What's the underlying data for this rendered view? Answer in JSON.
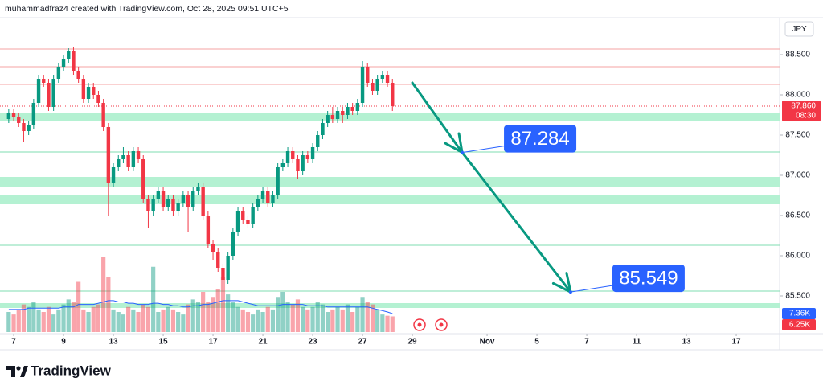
{
  "header": "muhammadfraz4 created with TradingView.com, Oct 28, 2025 09:51 UTC+5",
  "logo": "TradingView",
  "chart_data": {
    "type": "candlestick",
    "currency": "JPY",
    "x": [
      -0.2,
      0,
      0.2,
      0.4,
      0.6,
      0.8,
      1,
      1.2,
      1.4,
      1.6,
      1.8,
      2,
      2.2,
      2.4,
      2.6,
      2.8,
      3,
      3.2,
      3.4,
      3.6,
      3.8,
      4,
      4.2,
      4.4,
      4.6,
      4.8,
      5,
      5.2,
      5.4,
      5.6,
      5.8,
      6,
      6.2,
      6.4,
      6.6,
      6.8,
      7,
      7.2,
      7.4,
      7.6,
      7.8,
      8,
      8.2,
      8.4,
      8.6,
      8.8,
      9,
      9.2,
      9.4,
      9.6,
      9.8,
      10,
      10.2,
      10.4,
      10.6,
      10.8,
      11,
      11.2,
      11.4,
      11.6,
      11.8,
      12,
      12.2,
      12.4,
      12.6,
      12.8,
      13,
      13.2,
      13.4,
      13.6,
      13.8,
      14,
      14.2,
      14.4,
      14.6,
      14.8,
      15,
      15.2
    ],
    "open": [
      87.7,
      87.78,
      87.72,
      87.65,
      87.55,
      87.62,
      87.9,
      88.2,
      88.15,
      87.85,
      88.2,
      88.35,
      88.45,
      88.55,
      88.3,
      88.2,
      87.95,
      88.1,
      88.0,
      87.9,
      87.6,
      86.9,
      87.1,
      87.2,
      87.25,
      87.1,
      87.3,
      87.2,
      86.7,
      86.55,
      86.7,
      86.8,
      86.6,
      86.7,
      86.55,
      86.65,
      86.75,
      86.6,
      86.8,
      86.85,
      86.5,
      86.15,
      86.05,
      85.85,
      85.7,
      86.0,
      86.3,
      86.55,
      86.45,
      86.4,
      86.6,
      86.7,
      86.8,
      86.65,
      86.75,
      87.1,
      87.15,
      87.3,
      87.2,
      87.05,
      87.25,
      87.2,
      87.35,
      87.5,
      87.65,
      87.75,
      87.7,
      87.8,
      87.75,
      87.85,
      87.8,
      87.9,
      88.35,
      88.15,
      88.05,
      88.2,
      88.25,
      88.15
    ],
    "high": [
      87.83,
      87.83,
      87.77,
      87.7,
      87.67,
      87.95,
      88.25,
      88.25,
      88.2,
      88.25,
      88.4,
      88.5,
      88.58,
      88.6,
      88.35,
      88.25,
      88.15,
      88.15,
      88.05,
      87.95,
      87.65,
      87.15,
      87.25,
      87.35,
      87.3,
      87.35,
      87.35,
      87.25,
      86.75,
      86.75,
      86.85,
      86.85,
      86.75,
      86.75,
      86.7,
      86.8,
      86.8,
      86.85,
      86.9,
      86.9,
      86.55,
      86.2,
      86.1,
      85.9,
      86.05,
      86.35,
      86.6,
      86.6,
      86.5,
      86.65,
      86.75,
      86.85,
      86.85,
      86.8,
      87.15,
      87.2,
      87.35,
      87.35,
      87.25,
      87.3,
      87.3,
      87.4,
      87.55,
      87.7,
      87.8,
      87.85,
      87.85,
      87.85,
      87.9,
      87.9,
      87.95,
      88.42,
      88.4,
      88.2,
      88.25,
      88.3,
      88.3,
      88.2
    ],
    "low": [
      87.65,
      87.67,
      87.6,
      87.42,
      87.5,
      87.57,
      87.85,
      88.1,
      87.8,
      87.8,
      88.15,
      88.3,
      88.4,
      88.25,
      88.15,
      87.9,
      87.9,
      87.95,
      87.85,
      87.55,
      86.5,
      86.85,
      87.05,
      87.15,
      87.05,
      87.05,
      87.15,
      86.65,
      86.35,
      86.5,
      86.65,
      86.55,
      86.55,
      86.5,
      86.5,
      86.6,
      86.3,
      86.55,
      86.75,
      86.45,
      86.1,
      85.95,
      85.8,
      85.55,
      85.65,
      85.95,
      86.25,
      86.4,
      86.35,
      86.35,
      86.55,
      86.65,
      86.6,
      86.6,
      86.7,
      87.05,
      87.1,
      87.15,
      86.95,
      87.0,
      87.15,
      87.15,
      87.3,
      87.45,
      87.6,
      87.65,
      87.65,
      87.65,
      87.7,
      87.75,
      87.75,
      87.85,
      88.1,
      88.0,
      88.0,
      88.15,
      88.1,
      87.8
    ],
    "close": [
      87.78,
      87.72,
      87.65,
      87.55,
      87.62,
      87.9,
      88.2,
      88.15,
      87.85,
      88.2,
      88.35,
      88.45,
      88.55,
      88.3,
      88.2,
      87.95,
      88.1,
      88.0,
      87.9,
      87.6,
      86.9,
      87.1,
      87.2,
      87.25,
      87.1,
      87.3,
      87.2,
      86.7,
      86.55,
      86.7,
      86.8,
      86.6,
      86.7,
      86.55,
      86.65,
      86.75,
      86.6,
      86.8,
      86.85,
      86.5,
      86.15,
      86.05,
      85.85,
      85.7,
      86.0,
      86.3,
      86.55,
      86.45,
      86.4,
      86.6,
      86.7,
      86.8,
      86.65,
      86.75,
      87.1,
      87.15,
      87.3,
      87.2,
      87.05,
      87.25,
      87.2,
      87.35,
      87.5,
      87.65,
      87.75,
      87.7,
      87.8,
      87.75,
      87.85,
      87.8,
      87.9,
      88.35,
      88.15,
      88.05,
      88.2,
      88.25,
      88.15,
      87.86
    ],
    "up_color": "#089981",
    "down_color": "#f23645",
    "volume": {
      "values": [
        8,
        7,
        9,
        11,
        10,
        12,
        9,
        8,
        10,
        7,
        9,
        11,
        13,
        12,
        20,
        9,
        8,
        10,
        11,
        30,
        22,
        9,
        8,
        7,
        10,
        9,
        8,
        11,
        10,
        26,
        8,
        9,
        10,
        9,
        8,
        7,
        11,
        13,
        12,
        16,
        12,
        14,
        17,
        22,
        15,
        12,
        10,
        9,
        8,
        7,
        9,
        8,
        10,
        9,
        14,
        16,
        12,
        11,
        13,
        10,
        9,
        10,
        12,
        11,
        8,
        9,
        10,
        9,
        11,
        8,
        10,
        14,
        12,
        11,
        9,
        7,
        6.5,
        6.25
      ],
      "last_label": "6.25K"
    },
    "volume_ma": {
      "values": [
        9,
        9,
        9,
        9,
        9.5,
        9.5,
        9.5,
        9.5,
        9.5,
        9.5,
        9.5,
        10,
        10,
        10,
        11,
        11,
        11,
        11,
        11.5,
        12,
        12.5,
        12.5,
        12,
        12,
        11.5,
        11.5,
        11,
        11,
        11,
        11.5,
        11.5,
        11,
        11,
        10.5,
        10.5,
        10,
        10,
        10.5,
        10.5,
        11,
        11,
        11.5,
        12,
        12.5,
        12.5,
        12.5,
        12.5,
        12,
        11.5,
        11,
        10.5,
        10.5,
        10.5,
        10.5,
        10.5,
        11,
        11,
        11,
        11,
        11,
        10.5,
        10.5,
        10.5,
        10.5,
        10,
        10,
        10,
        10,
        10,
        10,
        10,
        10,
        10,
        9.5,
        9,
        8.5,
        8,
        7.36
      ],
      "last_label": "7.36K",
      "color": "#2962ff"
    },
    "volume_lim": [
      0,
      32
    ],
    "last_price": {
      "value": 87.86,
      "label": "87.860",
      "countdown": "08:30"
    },
    "levels": [
      88.57,
      88.35,
      88.13,
      87.29,
      86.13,
      85.56
    ],
    "level_colors": [
      "#f5a3a3",
      "#f5a3a3",
      "#f5a3a3",
      "#7fdcb0",
      "#7fdcb0",
      "#7fdcb0"
    ],
    "zones": [
      [
        87.77,
        87.68
      ],
      [
        86.98,
        86.86
      ],
      [
        86.76,
        86.64
      ],
      [
        85.41,
        85.35
      ]
    ],
    "zone_color": "#b4f1d2",
    "forecast": {
      "x": [
        16,
        18,
        22.35
      ],
      "y": [
        88.15,
        87.284,
        85.549
      ],
      "color": "#089981",
      "label_color": "#2962ff"
    },
    "xlim": [
      -0.55,
      30.74
    ],
    "ylim": [
      85.03,
      88.96
    ],
    "xticks": [
      {
        "value": 0,
        "label": "7"
      },
      {
        "value": 2,
        "label": "9"
      },
      {
        "value": 4,
        "label": "13"
      },
      {
        "value": 6,
        "label": "15"
      },
      {
        "value": 8,
        "label": "17"
      },
      {
        "value": 10,
        "label": "21"
      },
      {
        "value": 12,
        "label": "23"
      },
      {
        "value": 14,
        "label": "27"
      },
      {
        "value": 16,
        "label": "29"
      },
      {
        "value": 19,
        "label": "Nov"
      },
      {
        "value": 21,
        "label": "5"
      },
      {
        "value": 23,
        "label": "7"
      },
      {
        "value": 25,
        "label": "11"
      },
      {
        "value": 27,
        "label": "13"
      },
      {
        "value": 29,
        "label": "17"
      }
    ],
    "yticks": [
      {
        "value": 88.5,
        "label": "88.500"
      },
      {
        "value": 88,
        "label": "88.000"
      },
      {
        "value": 87.5,
        "label": "87.500"
      },
      {
        "value": 87,
        "label": "87.000"
      },
      {
        "value": 86.5,
        "label": "86.500"
      },
      {
        "value": 86,
        "label": "86.000"
      },
      {
        "value": 85.5,
        "label": "85.500"
      }
    ],
    "grid": false
  }
}
